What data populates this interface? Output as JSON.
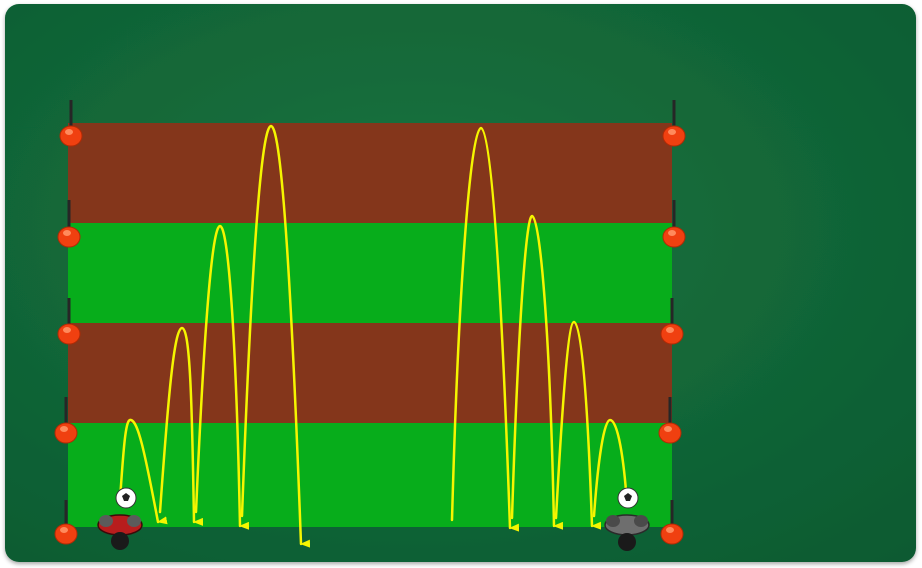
{
  "colors": {
    "background_light": "#156f3d",
    "background_dark": "#0e5a31",
    "stripe_red": "#84361b",
    "stripe_green": "#07ad1b",
    "cone": "#f04010",
    "pole": "#262626",
    "path": "#f5f500",
    "player_left_shirt": "#b81d1d",
    "player_right_shirt": "#6e6e6e",
    "ball": "#ffffff"
  },
  "field": {
    "stripes": [
      "red",
      "green",
      "red",
      "green"
    ],
    "cone_rows": 5
  },
  "players": [
    {
      "name": "player-left",
      "shirt": "red",
      "has_ball": true
    },
    {
      "name": "player-right",
      "shirt": "grey",
      "has_ball": true
    }
  ],
  "jump_groups": [
    {
      "name": "left-group",
      "arcs": 4,
      "heights": [
        "row-1",
        "row-2",
        "row-3",
        "row-4"
      ]
    },
    {
      "name": "right-group",
      "arcs": 4,
      "heights": [
        "row-4",
        "row-3",
        "row-2",
        "row-1"
      ]
    }
  ]
}
